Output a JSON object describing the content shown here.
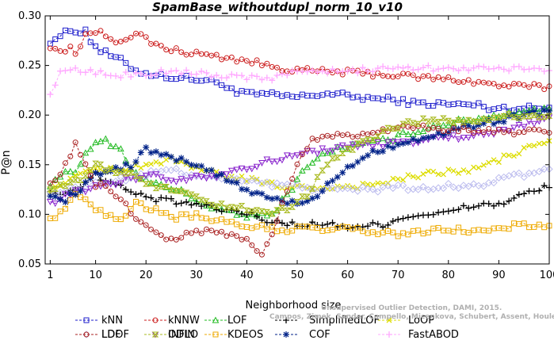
{
  "chart_data": {
    "type": "line",
    "title": "SpamBase_withoutdupl_norm_10_v10",
    "xlabel": "Neighborhood size",
    "ylabel": "P@n",
    "xlim": [
      0,
      100
    ],
    "ylim": [
      0.05,
      0.3
    ],
    "xticks": [
      1,
      10,
      20,
      30,
      40,
      50,
      60,
      70,
      80,
      90,
      100
    ],
    "yticks": [
      0.05,
      0.1,
      0.15,
      0.2,
      0.25,
      0.3
    ],
    "xtick_labels": [
      "1",
      "10",
      "20",
      "30",
      "40",
      "50",
      "60",
      "70",
      "80",
      "90",
      "100"
    ],
    "ytick_labels": [
      "0.05",
      "0.10",
      "0.15",
      "0.20",
      "0.25",
      "0.30"
    ],
    "watermark": "Campos, Zimek, Sander, Campello, Micenkova, Schubert, Assent, Houle: Unsupervised Outlier Detection, DAMI, 2015.",
    "legend_position": "bottom",
    "grid": false,
    "series": [
      {
        "name": "kNN",
        "color": "#1f1fcc",
        "marker": "square",
        "keypoints": [
          [
            1,
            0.275
          ],
          [
            3,
            0.28
          ],
          [
            5,
            0.285
          ],
          [
            8,
            0.285
          ],
          [
            9,
            0.275
          ],
          [
            11,
            0.265
          ],
          [
            13,
            0.26
          ],
          [
            15,
            0.255
          ],
          [
            18,
            0.245
          ],
          [
            22,
            0.24
          ],
          [
            32,
            0.235
          ],
          [
            36,
            0.23
          ],
          [
            38,
            0.222
          ],
          [
            46,
            0.22
          ],
          [
            50,
            0.218
          ],
          [
            56,
            0.222
          ],
          [
            62,
            0.218
          ],
          [
            70,
            0.215
          ],
          [
            73,
            0.212
          ],
          [
            86,
            0.21
          ],
          [
            88,
            0.207
          ],
          [
            100,
            0.207
          ]
        ]
      },
      {
        "name": "kNNW",
        "color": "#cc1f1f",
        "marker": "circle",
        "keypoints": [
          [
            1,
            0.27
          ],
          [
            3,
            0.265
          ],
          [
            5,
            0.268
          ],
          [
            6,
            0.262
          ],
          [
            8,
            0.28
          ],
          [
            10,
            0.285
          ],
          [
            14,
            0.275
          ],
          [
            18,
            0.282
          ],
          [
            22,
            0.27
          ],
          [
            26,
            0.265
          ],
          [
            30,
            0.262
          ],
          [
            40,
            0.255
          ],
          [
            44,
            0.25
          ],
          [
            50,
            0.245
          ],
          [
            60,
            0.243
          ],
          [
            70,
            0.24
          ],
          [
            75,
            0.238
          ],
          [
            83,
            0.235
          ],
          [
            90,
            0.23
          ],
          [
            100,
            0.228
          ]
        ]
      },
      {
        "name": "LOF",
        "color": "#22bb22",
        "marker": "triangle",
        "keypoints": [
          [
            1,
            0.13
          ],
          [
            3,
            0.14
          ],
          [
            6,
            0.145
          ],
          [
            8,
            0.16
          ],
          [
            10,
            0.17
          ],
          [
            12,
            0.175
          ],
          [
            15,
            0.165
          ],
          [
            18,
            0.14
          ],
          [
            22,
            0.13
          ],
          [
            26,
            0.125
          ],
          [
            30,
            0.115
          ],
          [
            34,
            0.105
          ],
          [
            38,
            0.1
          ],
          [
            42,
            0.098
          ],
          [
            45,
            0.1
          ],
          [
            48,
            0.12
          ],
          [
            52,
            0.15
          ],
          [
            57,
            0.165
          ],
          [
            62,
            0.17
          ],
          [
            68,
            0.175
          ],
          [
            72,
            0.182
          ],
          [
            78,
            0.19
          ],
          [
            84,
            0.195
          ],
          [
            90,
            0.2
          ],
          [
            95,
            0.205
          ],
          [
            100,
            0.205
          ]
        ]
      },
      {
        "name": "SimplifiedLOF",
        "color": "#000000",
        "marker": "plus",
        "keypoints": [
          [
            1,
            0.125
          ],
          [
            4,
            0.12
          ],
          [
            7,
            0.13
          ],
          [
            10,
            0.14
          ],
          [
            14,
            0.13
          ],
          [
            18,
            0.12
          ],
          [
            22,
            0.115
          ],
          [
            26,
            0.112
          ],
          [
            30,
            0.11
          ],
          [
            34,
            0.105
          ],
          [
            38,
            0.103
          ],
          [
            42,
            0.098
          ],
          [
            45,
            0.092
          ],
          [
            50,
            0.09
          ],
          [
            55,
            0.09
          ],
          [
            60,
            0.088
          ],
          [
            63,
            0.088
          ],
          [
            67,
            0.09
          ],
          [
            70,
            0.095
          ],
          [
            74,
            0.1
          ],
          [
            78,
            0.1
          ],
          [
            82,
            0.105
          ],
          [
            86,
            0.11
          ],
          [
            90,
            0.11
          ],
          [
            95,
            0.12
          ],
          [
            100,
            0.128
          ]
        ]
      },
      {
        "name": "LoOP",
        "color": "#dddd00",
        "marker": "x",
        "keypoints": [
          [
            1,
            0.125
          ],
          [
            5,
            0.135
          ],
          [
            10,
            0.145
          ],
          [
            15,
            0.145
          ],
          [
            20,
            0.15
          ],
          [
            25,
            0.155
          ],
          [
            30,
            0.145
          ],
          [
            35,
            0.14
          ],
          [
            40,
            0.135
          ],
          [
            45,
            0.13
          ],
          [
            50,
            0.127
          ],
          [
            55,
            0.127
          ],
          [
            60,
            0.128
          ],
          [
            65,
            0.13
          ],
          [
            70,
            0.135
          ],
          [
            75,
            0.14
          ],
          [
            80,
            0.143
          ],
          [
            85,
            0.145
          ],
          [
            90,
            0.155
          ],
          [
            95,
            0.165
          ],
          [
            100,
            0.175
          ]
        ]
      },
      {
        "name": "LDOF",
        "color": "#bbbbee",
        "marker": "diamond",
        "keypoints": [
          [
            1,
            0.12
          ],
          [
            5,
            0.125
          ],
          [
            10,
            0.13
          ],
          [
            15,
            0.135
          ],
          [
            20,
            0.14
          ],
          [
            25,
            0.145
          ],
          [
            30,
            0.14
          ],
          [
            35,
            0.135
          ],
          [
            40,
            0.133
          ],
          [
            45,
            0.13
          ],
          [
            50,
            0.128
          ],
          [
            55,
            0.125
          ],
          [
            60,
            0.125
          ],
          [
            65,
            0.125
          ],
          [
            70,
            0.128
          ],
          [
            75,
            0.125
          ],
          [
            80,
            0.128
          ],
          [
            85,
            0.128
          ],
          [
            90,
            0.135
          ],
          [
            95,
            0.14
          ],
          [
            100,
            0.145
          ]
        ]
      },
      {
        "name": "ODIN",
        "color": "#8822cc",
        "marker": "triangle-down",
        "keypoints": [
          [
            1,
            0.11
          ],
          [
            4,
            0.12
          ],
          [
            8,
            0.125
          ],
          [
            12,
            0.13
          ],
          [
            16,
            0.135
          ],
          [
            20,
            0.14
          ],
          [
            25,
            0.135
          ],
          [
            30,
            0.138
          ],
          [
            34,
            0.14
          ],
          [
            38,
            0.145
          ],
          [
            42,
            0.15
          ],
          [
            46,
            0.155
          ],
          [
            50,
            0.16
          ],
          [
            55,
            0.165
          ],
          [
            60,
            0.168
          ],
          [
            65,
            0.17
          ],
          [
            70,
            0.172
          ],
          [
            75,
            0.175
          ],
          [
            80,
            0.177
          ],
          [
            85,
            0.18
          ],
          [
            90,
            0.183
          ],
          [
            95,
            0.19
          ],
          [
            100,
            0.2
          ]
        ]
      },
      {
        "name": "KDEOS",
        "color": "#eeaa00",
        "marker": "square",
        "keypoints": [
          [
            1,
            0.095
          ],
          [
            3,
            0.1
          ],
          [
            6,
            0.12
          ],
          [
            9,
            0.11
          ],
          [
            12,
            0.1
          ],
          [
            15,
            0.095
          ],
          [
            18,
            0.11
          ],
          [
            22,
            0.105
          ],
          [
            26,
            0.097
          ],
          [
            30,
            0.1
          ],
          [
            34,
            0.093
          ],
          [
            38,
            0.09
          ],
          [
            42,
            0.087
          ],
          [
            46,
            0.085
          ],
          [
            50,
            0.085
          ],
          [
            55,
            0.085
          ],
          [
            60,
            0.085
          ],
          [
            65,
            0.082
          ],
          [
            70,
            0.08
          ],
          [
            75,
            0.082
          ],
          [
            80,
            0.085
          ],
          [
            85,
            0.083
          ],
          [
            90,
            0.085
          ],
          [
            95,
            0.09
          ],
          [
            100,
            0.087
          ]
        ]
      },
      {
        "name": "COF",
        "color": "#002288",
        "marker": "star",
        "keypoints": [
          [
            1,
            0.12
          ],
          [
            4,
            0.115
          ],
          [
            7,
            0.125
          ],
          [
            10,
            0.14
          ],
          [
            14,
            0.145
          ],
          [
            17,
            0.15
          ],
          [
            20,
            0.165
          ],
          [
            23,
            0.16
          ],
          [
            26,
            0.155
          ],
          [
            30,
            0.15
          ],
          [
            34,
            0.14
          ],
          [
            38,
            0.13
          ],
          [
            42,
            0.12
          ],
          [
            46,
            0.115
          ],
          [
            50,
            0.11
          ],
          [
            54,
            0.12
          ],
          [
            58,
            0.14
          ],
          [
            62,
            0.155
          ],
          [
            66,
            0.165
          ],
          [
            70,
            0.17
          ],
          [
            75,
            0.177
          ],
          [
            80,
            0.183
          ],
          [
            85,
            0.19
          ],
          [
            90,
            0.195
          ],
          [
            95,
            0.2
          ],
          [
            100,
            0.205
          ]
        ]
      },
      {
        "name": "FastABOD",
        "color": "#ffaaff",
        "marker": "plus",
        "keypoints": [
          [
            1,
            0.22
          ],
          [
            2,
            0.23
          ],
          [
            3,
            0.242
          ],
          [
            6,
            0.245
          ],
          [
            10,
            0.243
          ],
          [
            14,
            0.24
          ],
          [
            20,
            0.242
          ],
          [
            25,
            0.243
          ],
          [
            30,
            0.243
          ],
          [
            35,
            0.24
          ],
          [
            40,
            0.238
          ],
          [
            45,
            0.238
          ],
          [
            50,
            0.245
          ],
          [
            55,
            0.243
          ],
          [
            60,
            0.245
          ],
          [
            65,
            0.245
          ],
          [
            70,
            0.25
          ],
          [
            75,
            0.247
          ],
          [
            80,
            0.248
          ],
          [
            85,
            0.247
          ],
          [
            90,
            0.247
          ],
          [
            100,
            0.247
          ]
        ]
      },
      {
        "name": "LDF",
        "color": "#aa2222",
        "marker": "circle",
        "keypoints": [
          [
            1,
            0.13
          ],
          [
            3,
            0.14
          ],
          [
            5,
            0.16
          ],
          [
            6,
            0.175
          ],
          [
            8,
            0.15
          ],
          [
            10,
            0.13
          ],
          [
            13,
            0.125
          ],
          [
            16,
            0.11
          ],
          [
            19,
            0.09
          ],
          [
            22,
            0.08
          ],
          [
            25,
            0.075
          ],
          [
            29,
            0.08
          ],
          [
            33,
            0.085
          ],
          [
            36,
            0.08
          ],
          [
            40,
            0.075
          ],
          [
            42,
            0.065
          ],
          [
            43,
            0.058
          ],
          [
            45,
            0.08
          ],
          [
            47,
            0.11
          ],
          [
            50,
            0.15
          ],
          [
            53,
            0.175
          ],
          [
            57,
            0.18
          ],
          [
            62,
            0.18
          ],
          [
            67,
            0.185
          ],
          [
            72,
            0.19
          ],
          [
            78,
            0.185
          ],
          [
            84,
            0.185
          ],
          [
            90,
            0.183
          ],
          [
            100,
            0.183
          ]
        ]
      },
      {
        "name": "INFLO",
        "color": "#aabb22",
        "marker": "hourglass",
        "keypoints": [
          [
            1,
            0.125
          ],
          [
            4,
            0.13
          ],
          [
            7,
            0.135
          ],
          [
            10,
            0.15
          ],
          [
            13,
            0.145
          ],
          [
            17,
            0.14
          ],
          [
            20,
            0.13
          ],
          [
            24,
            0.125
          ],
          [
            28,
            0.12
          ],
          [
            32,
            0.112
          ],
          [
            36,
            0.108
          ],
          [
            40,
            0.105
          ],
          [
            44,
            0.1
          ],
          [
            48,
            0.105
          ],
          [
            52,
            0.12
          ],
          [
            56,
            0.15
          ],
          [
            60,
            0.165
          ],
          [
            64,
            0.175
          ],
          [
            68,
            0.185
          ],
          [
            72,
            0.192
          ],
          [
            76,
            0.195
          ],
          [
            80,
            0.195
          ],
          [
            85,
            0.195
          ],
          [
            90,
            0.197
          ],
          [
            95,
            0.2
          ],
          [
            100,
            0.2
          ]
        ]
      }
    ]
  }
}
